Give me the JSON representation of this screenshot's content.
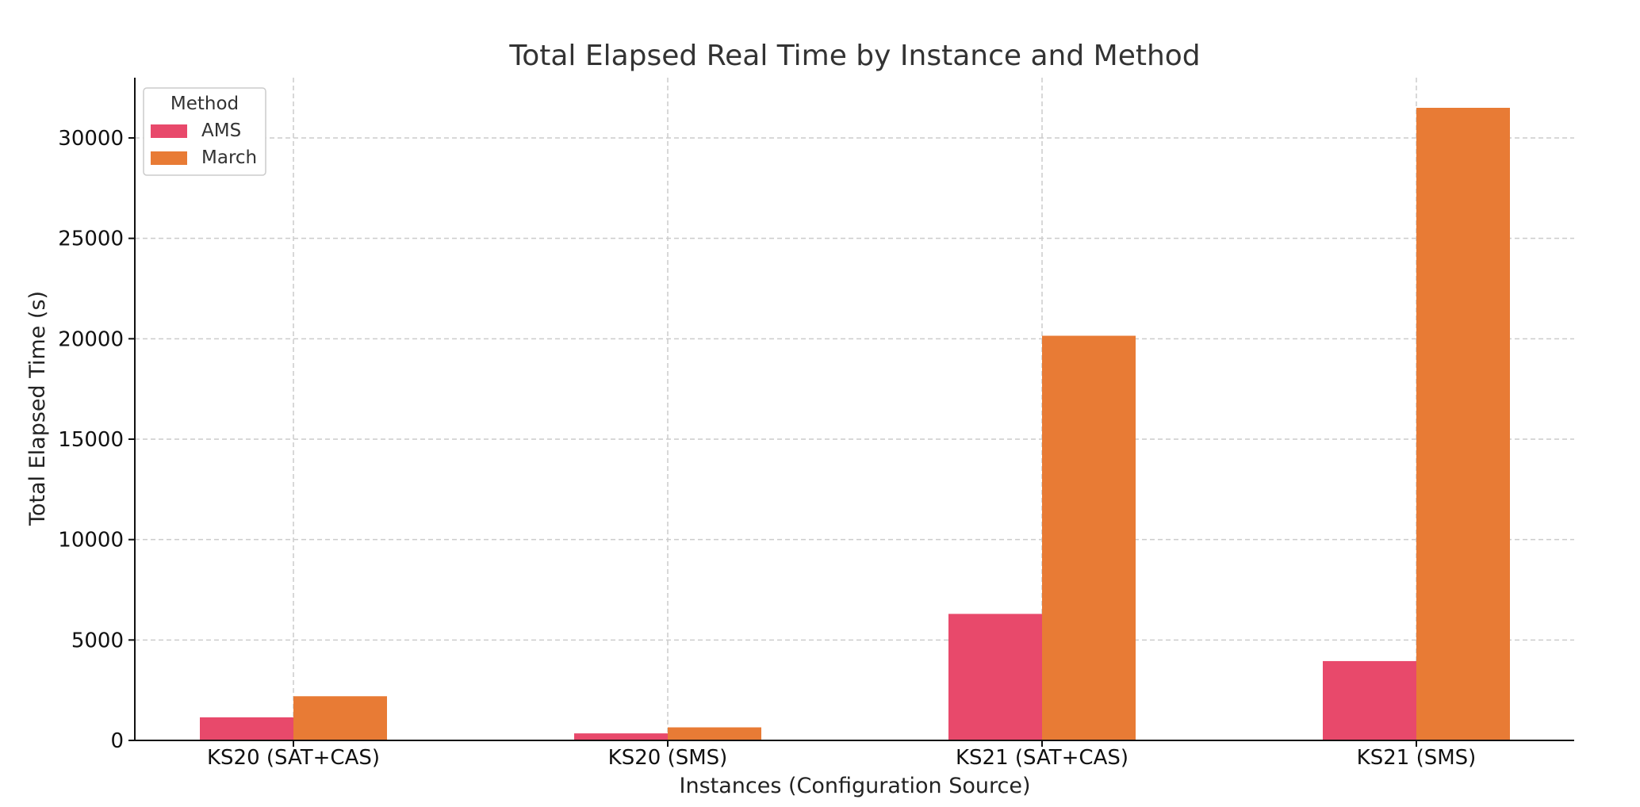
{
  "chart_data": {
    "type": "bar",
    "title": "Total Elapsed Real Time by Instance and Method",
    "xlabel": "Instances (Configuration Source)",
    "ylabel": "Total Elapsed Time (s)",
    "categories": [
      "KS20 (SAT+CAS)",
      "KS20 (SMS)",
      "KS21 (SAT+CAS)",
      "KS21 (SMS)"
    ],
    "series": [
      {
        "name": "AMS",
        "color": "#e8496b",
        "values": [
          1150,
          350,
          6300,
          3950
        ]
      },
      {
        "name": "March",
        "color": "#e87b35",
        "values": [
          2200,
          650,
          20150,
          31500
        ]
      }
    ],
    "ylim": [
      0,
      33000
    ],
    "yticks": [
      0,
      5000,
      10000,
      15000,
      20000,
      25000,
      30000
    ],
    "grid": true,
    "legend": {
      "title": "Method",
      "placement": "top-left"
    }
  }
}
